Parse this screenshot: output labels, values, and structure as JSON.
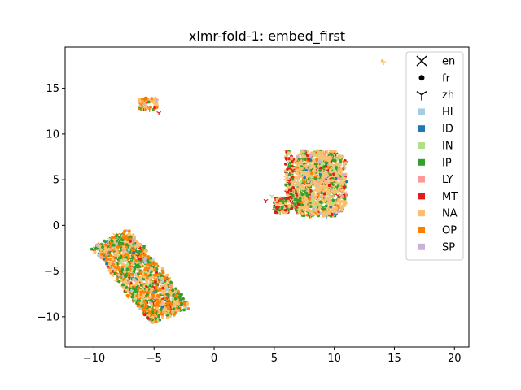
{
  "chart_data": {
    "type": "scatter",
    "title": "xlmr-fold-1: embed_first",
    "xlabel": "",
    "ylabel": "",
    "xlim": [
      -12.4,
      21.2
    ],
    "ylim": [
      -13.3,
      19.5
    ],
    "xticks": [
      -10,
      -5,
      0,
      5,
      10,
      15,
      20
    ],
    "yticks": [
      -10,
      -5,
      0,
      5,
      10,
      15
    ],
    "grid": false,
    "legend_position": "top-right",
    "marker_legend": [
      {
        "label": "en",
        "marker": "x"
      },
      {
        "label": "fr",
        "marker": "o"
      },
      {
        "label": "zh",
        "marker": "tri_down"
      }
    ],
    "color_legend": [
      {
        "label": "HI",
        "color": "#a6cee3"
      },
      {
        "label": "ID",
        "color": "#1f78b4"
      },
      {
        "label": "IN",
        "color": "#b2df8a"
      },
      {
        "label": "IP",
        "color": "#33a02c"
      },
      {
        "label": "LY",
        "color": "#fb9a99"
      },
      {
        "label": "MT",
        "color": "#e31a1c"
      },
      {
        "label": "NA",
        "color": "#fdbf6f"
      },
      {
        "label": "OP",
        "color": "#ff7f00"
      },
      {
        "label": "SP",
        "color": "#cab2d6"
      }
    ],
    "clusters": [
      {
        "name": "bottom-left band",
        "approx_region": {
          "x": [
            -10.8,
            -2.3
          ],
          "y": [
            -11.6,
            0.2
          ]
        },
        "points_approx": [
          {
            "x": -10.2,
            "y": -2.5,
            "category": "OP"
          },
          {
            "x": -9.5,
            "y": -1.2,
            "category": "NA"
          },
          {
            "x": -8.5,
            "y": -0.2,
            "category": "OP"
          },
          {
            "x": -8.0,
            "y": -1.5,
            "category": "IP"
          },
          {
            "x": -9.0,
            "y": -3.5,
            "category": "OP"
          },
          {
            "x": -7.5,
            "y": -4.0,
            "category": "NA"
          },
          {
            "x": -8.0,
            "y": -6.0,
            "category": "IP"
          },
          {
            "x": -7.0,
            "y": -7.5,
            "category": "OP"
          },
          {
            "x": -6.0,
            "y": -8.5,
            "category": "NA"
          },
          {
            "x": -5.5,
            "y": -10.0,
            "category": "IP"
          },
          {
            "x": -4.5,
            "y": -11.2,
            "category": "NA"
          },
          {
            "x": -3.5,
            "y": -10.5,
            "category": "OP"
          },
          {
            "x": -2.7,
            "y": -8.5,
            "category": "IP"
          },
          {
            "x": -4.0,
            "y": -7.0,
            "category": "MT"
          },
          {
            "x": -5.5,
            "y": -5.0,
            "category": "NA"
          },
          {
            "x": -6.5,
            "y": -3.0,
            "category": "OP"
          },
          {
            "x": -10.6,
            "y": -2.9,
            "category": "ID"
          }
        ]
      },
      {
        "name": "small upper-left cluster",
        "approx_region": {
          "x": [
            -6.3,
            -4.4
          ],
          "y": [
            12.3,
            14.0
          ]
        },
        "points_approx": [
          {
            "x": -5.6,
            "y": 13.6,
            "category": "NA"
          },
          {
            "x": -5.1,
            "y": 13.0,
            "category": "OP"
          },
          {
            "x": -6.0,
            "y": 12.9,
            "category": "IP"
          },
          {
            "x": -4.6,
            "y": 12.3,
            "category": "MT"
          }
        ]
      },
      {
        "name": "right cluster",
        "approx_region": {
          "x": [
            4.3,
            11.3
          ],
          "y": [
            0.5,
            8.4
          ]
        },
        "points_approx": [
          {
            "x": 6.0,
            "y": 8.0,
            "category": "MT"
          },
          {
            "x": 7.5,
            "y": 7.0,
            "category": "NA"
          },
          {
            "x": 9.5,
            "y": 7.8,
            "category": "NA"
          },
          {
            "x": 10.5,
            "y": 6.0,
            "category": "NA"
          },
          {
            "x": 8.5,
            "y": 4.0,
            "category": "IP"
          },
          {
            "x": 7.0,
            "y": 3.0,
            "category": "MT"
          },
          {
            "x": 9.0,
            "y": 1.0,
            "category": "NA"
          },
          {
            "x": 10.5,
            "y": 3.0,
            "category": "IP"
          },
          {
            "x": 5.5,
            "y": 2.0,
            "category": "IP"
          },
          {
            "x": 4.3,
            "y": 2.7,
            "category": "MT"
          },
          {
            "x": 6.5,
            "y": 5.0,
            "category": "IN"
          }
        ]
      },
      {
        "name": "outlier",
        "approx_region": {
          "x": [
            14.1,
            14.1
          ],
          "y": [
            17.8,
            17.8
          ]
        },
        "points_approx": [
          {
            "x": 14.1,
            "y": 17.8,
            "category": "NA"
          }
        ]
      }
    ]
  }
}
